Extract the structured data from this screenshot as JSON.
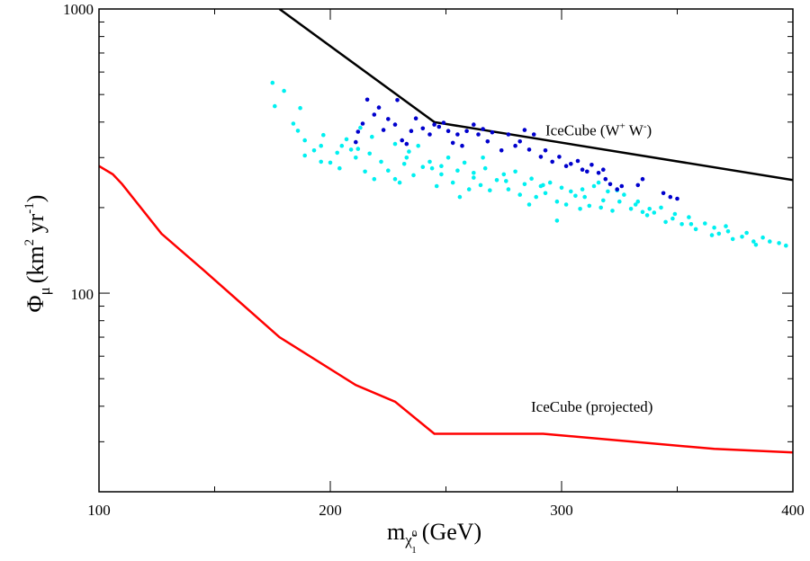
{
  "chart_data": {
    "type": "scatter",
    "xlim": [
      100,
      400
    ],
    "ylim": [
      20,
      1000
    ],
    "yscale": "log",
    "x_ticks": [
      100,
      200,
      300,
      400
    ],
    "x_tick_labels": [
      "100",
      "200",
      "300",
      "400"
    ],
    "y_ticks": [
      100,
      1000
    ],
    "y_tick_labels": [
      "100",
      "1000"
    ],
    "xlabel": {
      "base": "m",
      "sub_glyph": "χ̃",
      "sub_sup": "0",
      "sub_sub": "1",
      "unit": "(GeV)"
    },
    "ylabel": {
      "symbol": "Φ",
      "sub": "μ",
      "pre": "(km",
      "sup1": "2",
      "mid": " yr",
      "sup2": "-1",
      "post": ")"
    },
    "series": [
      {
        "name": "IceCube (W+ W-)",
        "kind": "line",
        "color": "#000000",
        "points": [
          [
            178,
            1000
          ],
          [
            245,
            400
          ],
          [
            400,
            250
          ]
        ]
      },
      {
        "name": "IceCube (projected)",
        "kind": "line",
        "color": "#ff0000",
        "points": [
          [
            100,
            280
          ],
          [
            106,
            262
          ],
          [
            110,
            242
          ],
          [
            127,
            162
          ],
          [
            145,
            121
          ],
          [
            178,
            70
          ],
          [
            211,
            47.5
          ],
          [
            228,
            41.5
          ],
          [
            245,
            32
          ],
          [
            292,
            32
          ],
          [
            366,
            28.3
          ],
          [
            400,
            27.5
          ]
        ]
      },
      {
        "name": "cyan points",
        "kind": "scatter",
        "color": "#00f0f0",
        "points": [
          [
            175,
            550
          ],
          [
            176,
            455
          ],
          [
            180,
            515
          ],
          [
            184,
            395
          ],
          [
            187,
            448
          ],
          [
            186,
            373
          ],
          [
            189,
            345
          ],
          [
            193,
            318
          ],
          [
            196,
            330
          ],
          [
            197,
            360
          ],
          [
            200,
            288
          ],
          [
            203,
            312
          ],
          [
            204,
            275
          ],
          [
            207,
            348
          ],
          [
            209,
            320
          ],
          [
            211,
            300
          ],
          [
            213,
            382
          ],
          [
            215,
            268
          ],
          [
            217,
            310
          ],
          [
            219,
            252
          ],
          [
            222,
            290
          ],
          [
            225,
            270
          ],
          [
            228,
            335
          ],
          [
            230,
            245
          ],
          [
            232,
            285
          ],
          [
            234,
            315
          ],
          [
            236,
            260
          ],
          [
            238,
            330
          ],
          [
            240,
            278
          ],
          [
            243,
            290
          ],
          [
            246,
            238
          ],
          [
            248,
            262
          ],
          [
            251,
            300
          ],
          [
            253,
            245
          ],
          [
            255,
            270
          ],
          [
            258,
            288
          ],
          [
            260,
            232
          ],
          [
            262,
            255
          ],
          [
            265,
            240
          ],
          [
            267,
            275
          ],
          [
            269,
            230
          ],
          [
            272,
            250
          ],
          [
            275,
            262
          ],
          [
            277,
            232
          ],
          [
            280,
            268
          ],
          [
            282,
            222
          ],
          [
            284,
            242
          ],
          [
            287,
            253
          ],
          [
            289,
            218
          ],
          [
            291,
            238
          ],
          [
            293,
            225
          ],
          [
            295,
            245
          ],
          [
            298,
            210
          ],
          [
            300,
            235
          ],
          [
            302,
            205
          ],
          [
            304,
            228
          ],
          [
            306,
            220
          ],
          [
            308,
            198
          ],
          [
            310,
            218
          ],
          [
            312,
            203
          ],
          [
            314,
            238
          ],
          [
            316,
            245
          ],
          [
            318,
            212
          ],
          [
            320,
            228
          ],
          [
            322,
            195
          ],
          [
            325,
            210
          ],
          [
            327,
            222
          ],
          [
            330,
            198
          ],
          [
            332,
            205
          ],
          [
            335,
            193
          ],
          [
            337,
            188
          ],
          [
            340,
            192
          ],
          [
            343,
            200
          ],
          [
            345,
            178
          ],
          [
            348,
            183
          ],
          [
            352,
            175
          ],
          [
            355,
            185
          ],
          [
            358,
            168
          ],
          [
            362,
            176
          ],
          [
            366,
            170
          ],
          [
            368,
            162
          ],
          [
            371,
            172
          ],
          [
            374,
            155
          ],
          [
            378,
            158
          ],
          [
            380,
            163
          ],
          [
            384,
            148
          ],
          [
            387,
            157
          ],
          [
            390,
            152
          ],
          [
            394,
            150
          ],
          [
            397,
            147
          ],
          [
            189,
            305
          ],
          [
            205,
            330
          ],
          [
            218,
            355
          ],
          [
            228,
            252
          ],
          [
            244,
            275
          ],
          [
            256,
            218
          ],
          [
            266,
            300
          ],
          [
            276,
            248
          ],
          [
            292,
            240
          ],
          [
            309,
            232
          ],
          [
            324,
            230
          ],
          [
            338,
            198
          ],
          [
            356,
            175
          ],
          [
            372,
            165
          ],
          [
            196,
            290
          ],
          [
            212,
            322
          ],
          [
            233,
            300
          ],
          [
            248,
            280
          ],
          [
            262,
            265
          ],
          [
            286,
            205
          ],
          [
            298,
            180
          ],
          [
            317,
            200
          ],
          [
            333,
            210
          ],
          [
            349,
            190
          ],
          [
            365,
            160
          ],
          [
            383,
            152
          ]
        ]
      },
      {
        "name": "blue points",
        "kind": "scatter",
        "color": "#0000cd",
        "points": [
          [
            211,
            340
          ],
          [
            212,
            370
          ],
          [
            214,
            395
          ],
          [
            216,
            480
          ],
          [
            219,
            425
          ],
          [
            221,
            450
          ],
          [
            223,
            375
          ],
          [
            225,
            410
          ],
          [
            228,
            392
          ],
          [
            229,
            478
          ],
          [
            231,
            345
          ],
          [
            233,
            335
          ],
          [
            235,
            372
          ],
          [
            237,
            412
          ],
          [
            240,
            380
          ],
          [
            243,
            362
          ],
          [
            245,
            392
          ],
          [
            247,
            385
          ],
          [
            249,
            398
          ],
          [
            251,
            372
          ],
          [
            253,
            338
          ],
          [
            255,
            362
          ],
          [
            257,
            330
          ],
          [
            259,
            372
          ],
          [
            262,
            392
          ],
          [
            264,
            362
          ],
          [
            266,
            378
          ],
          [
            268,
            342
          ],
          [
            270,
            368
          ],
          [
            274,
            318
          ],
          [
            277,
            362
          ],
          [
            280,
            330
          ],
          [
            282,
            342
          ],
          [
            284,
            375
          ],
          [
            286,
            320
          ],
          [
            288,
            362
          ],
          [
            291,
            302
          ],
          [
            293,
            318
          ],
          [
            296,
            290
          ],
          [
            299,
            302
          ],
          [
            302,
            280
          ],
          [
            304,
            285
          ],
          [
            307,
            292
          ],
          [
            309,
            272
          ],
          [
            311,
            268
          ],
          [
            313,
            283
          ],
          [
            316,
            265
          ],
          [
            318,
            272
          ],
          [
            319,
            252
          ],
          [
            321,
            242
          ],
          [
            324,
            232
          ],
          [
            326,
            238
          ],
          [
            333,
            240
          ],
          [
            335,
            252
          ],
          [
            344,
            225
          ],
          [
            347,
            218
          ],
          [
            350,
            215
          ]
        ]
      }
    ],
    "annotations": [
      {
        "text_pre": "IceCube (W",
        "sup1": "+",
        "mid": " W",
        "sup2": "-",
        "text_post": ")",
        "x": 293,
        "y": 375
      },
      {
        "text": "IceCube (projected)",
        "x": 293,
        "y": 40
      }
    ]
  }
}
